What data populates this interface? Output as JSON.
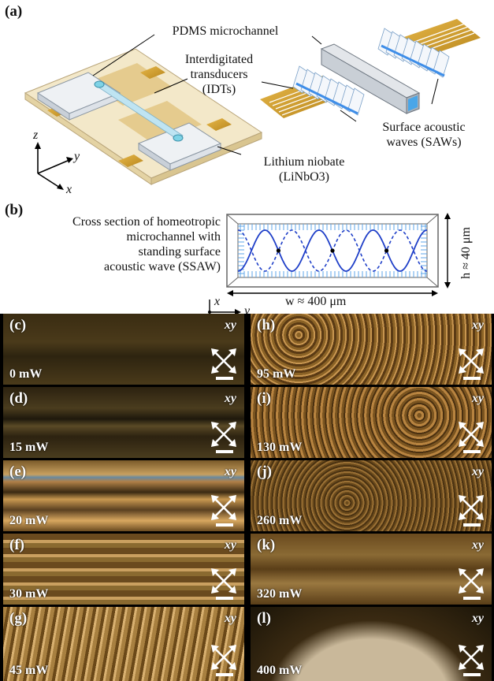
{
  "panel_a": {
    "letter": "(a)",
    "pdms_label": "PDMS microchannel",
    "idt_label": [
      "Interdigitated",
      "transducers",
      "(IDTs)"
    ],
    "saw_label": [
      "Surface acoustic",
      "waves (SAWs)"
    ],
    "substrate_label": [
      "Lithium niobate",
      "(LiNbO3)"
    ],
    "axes": {
      "z": "z",
      "y": "y",
      "x": "x"
    }
  },
  "panel_b": {
    "letter": "(b)",
    "caption": [
      "Cross section of homeotropic",
      "microchannel with",
      "standing surface",
      "acoustic wave (SSAW)"
    ],
    "height_label": "h ≈ 40 μm",
    "width_label": "w ≈ 400 μm",
    "axes": {
      "x": "x",
      "y": "y"
    }
  },
  "micrographs": [
    {
      "tag": "(c)",
      "power": "0 mW",
      "pol": "xy"
    },
    {
      "tag": "(d)",
      "power": "15 mW",
      "pol": "xy"
    },
    {
      "tag": "(e)",
      "power": "20 mW",
      "pol": "xy"
    },
    {
      "tag": "(f)",
      "power": "30 mW",
      "pol": "xy"
    },
    {
      "tag": "(g)",
      "power": "45 mW",
      "pol": "xy"
    },
    {
      "tag": "(h)",
      "power": "95 mW",
      "pol": "xy"
    },
    {
      "tag": "(i)",
      "power": "130 mW",
      "pol": "xy"
    },
    {
      "tag": "(j)",
      "power": "260 mW",
      "pol": "xy"
    },
    {
      "tag": "(k)",
      "power": "320 mW",
      "pol": "xy"
    },
    {
      "tag": "(l)",
      "power": "400 mW",
      "pol": "xy"
    }
  ]
}
